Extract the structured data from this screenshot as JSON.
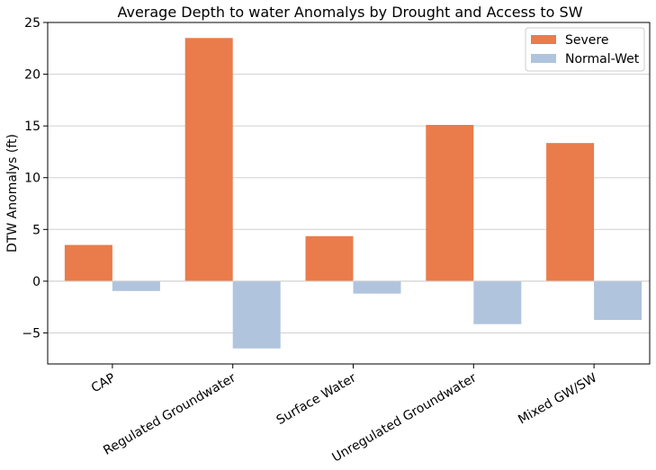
{
  "chart_data": {
    "type": "bar",
    "title": "Average Depth to water Anomalys by Drought and Access to SW",
    "xlabel": "",
    "ylabel": "DTW Anomalys (ft)",
    "ylim": [
      -8,
      25
    ],
    "yticks": [
      -5,
      0,
      5,
      10,
      15,
      20,
      25
    ],
    "ytick_labels": [
      "−5",
      "0",
      "5",
      "10",
      "15",
      "20",
      "25"
    ],
    "grid": true,
    "legend_position": "top-right",
    "categories": [
      "CAP",
      "Regulated Groundwater",
      "Surface Water",
      "Unregulated Groundwater",
      "Mixed GW/SW"
    ],
    "series": [
      {
        "name": "Severe",
        "color": "#e97c4a",
        "values": [
          3.5,
          23.5,
          4.35,
          15.1,
          13.35
        ]
      },
      {
        "name": "Normal-Wet",
        "color": "#b0c4de",
        "values": [
          -0.95,
          -6.5,
          -1.2,
          -4.15,
          -3.75
        ]
      }
    ]
  }
}
